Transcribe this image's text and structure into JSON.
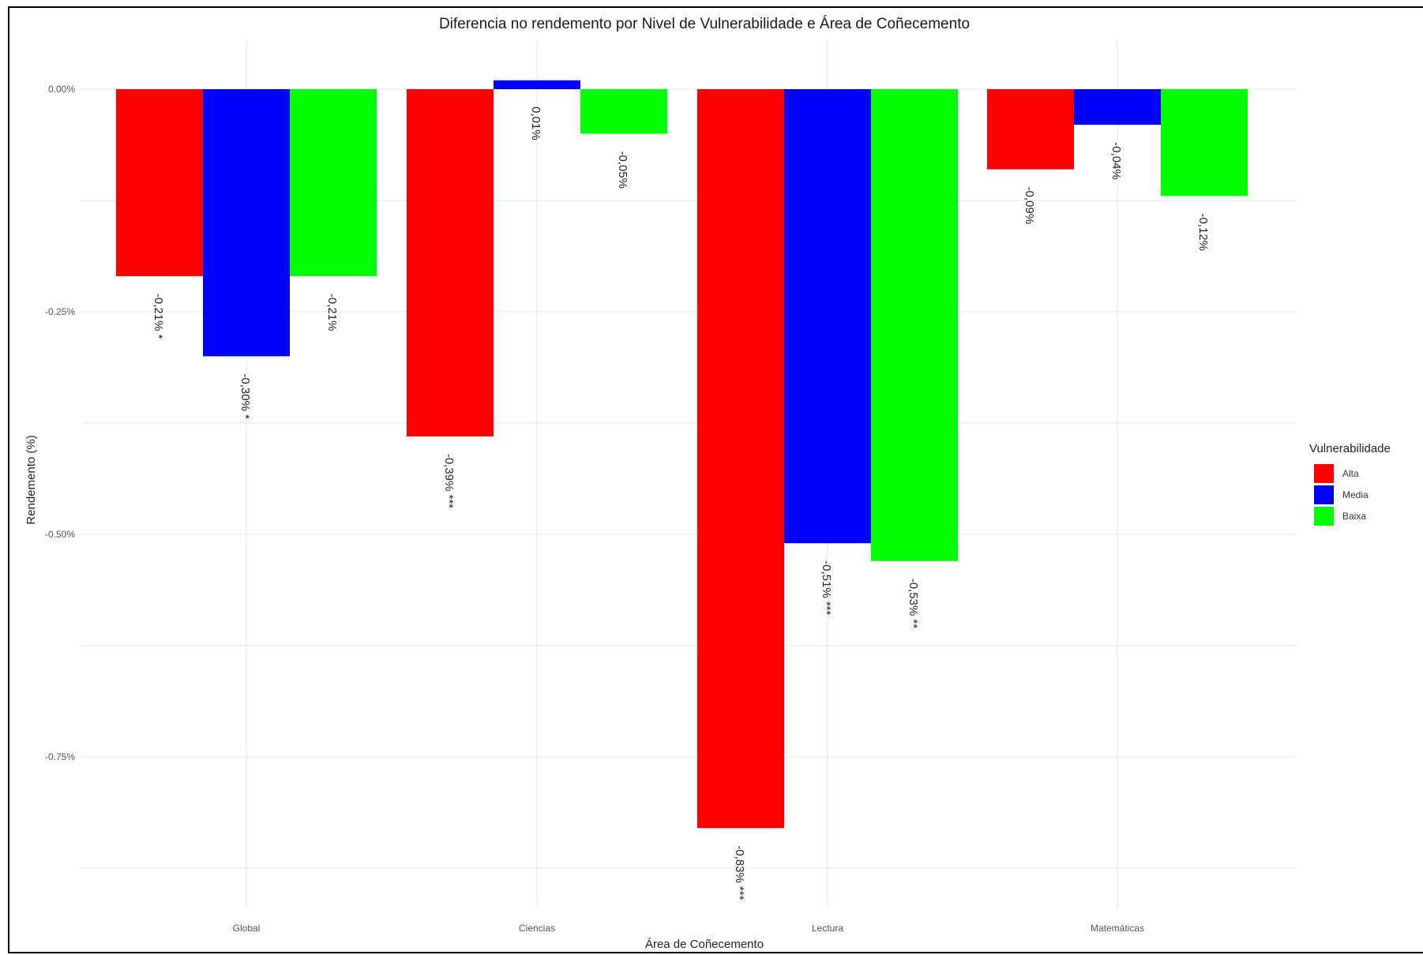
{
  "chart_data": {
    "type": "bar",
    "title": "Diferencia no rendemento por Nivel de Vulnerabilidade e Área de Coñecemento",
    "xlabel": "Área de Coñecemento",
    "ylabel": "Rendemento (%)",
    "categories": [
      "Global",
      "Ciencias",
      "Lectura",
      "Matemáticas"
    ],
    "ylim": [
      -0.875,
      0.0
    ],
    "yticks": [
      0.0,
      -0.25,
      -0.5,
      -0.75
    ],
    "ytick_labels": [
      "0.00%",
      "-0.25%",
      "-0.50%",
      "-0.75%"
    ],
    "grid": true,
    "legend": {
      "title": "Vulnerabilidade",
      "position": "right"
    },
    "series": [
      {
        "name": "Alta",
        "color": "#ff0000",
        "values": [
          -0.21,
          -0.39,
          -0.83,
          -0.09
        ],
        "labels": [
          "-0,21% *",
          "-0,39% ***",
          "-0,83% ***",
          "-0,09%"
        ]
      },
      {
        "name": "Media",
        "color": "#0000ff",
        "values": [
          -0.3,
          0.01,
          -0.51,
          -0.04
        ],
        "labels": [
          "-0,30% *",
          "0,01%",
          "-0,51% ***",
          "-0,04%"
        ]
      },
      {
        "name": "Baixa",
        "color": "#00ff00",
        "values": [
          -0.21,
          -0.05,
          -0.53,
          -0.12
        ],
        "labels": [
          "-0,21%",
          "-0,05%",
          "-0,53% **",
          "-0,12%"
        ]
      }
    ]
  }
}
